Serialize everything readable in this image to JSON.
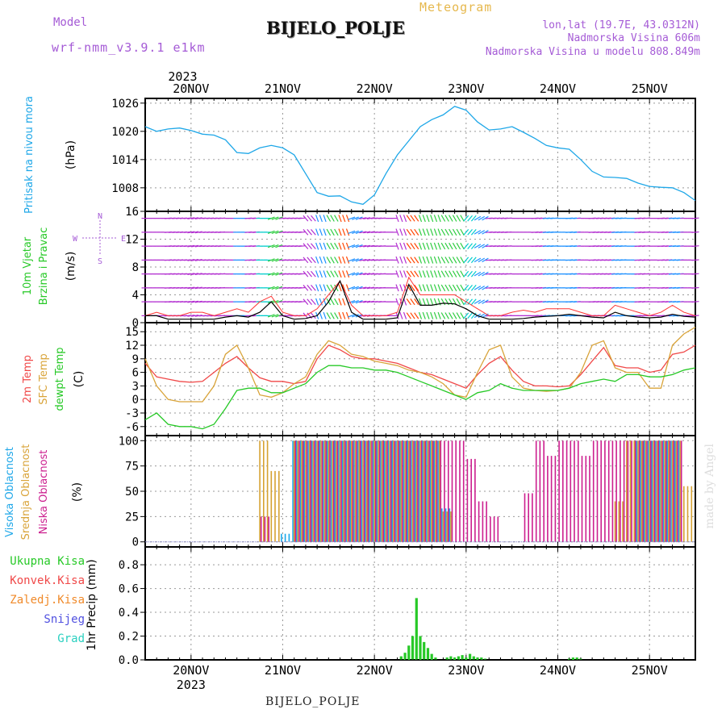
{
  "header": {
    "model_label": "Model",
    "model_name": "wrf-nmm_v3.9.1 e1km",
    "meteogram_label": "Meteogram",
    "station": "BIJELO_POLJE",
    "lonlat": "lon,lat (19.7E, 43.0312N)",
    "altitude": "Nadmorska Visina 606m",
    "model_altitude": "Nadmorska Visina u modelu 808.849m",
    "made_by": "made by Angel",
    "footer_station": "BIJELO_POLJE"
  },
  "time_axis": {
    "year_label": "2023",
    "day_labels": [
      "20NOV",
      "21NOV",
      "22NOV",
      "23NOV",
      "24NOV",
      "25NOV"
    ],
    "start_hour": -12,
    "end_hour": 132
  },
  "colors": {
    "pressure": "#1ea7e8",
    "wind_speed": "#000000",
    "wind_gust": "#ff3333",
    "temp_2m": "#f04848",
    "temp_sfc": "#d9a43a",
    "dewpoint": "#27c927",
    "cloud_high": "#19a8ea",
    "cloud_mid": "#d6a232",
    "cloud_low": "#cc1f8f",
    "precip_total": "#27c927",
    "label_cyan": "#1ea7e8",
    "label_green": "#27c927",
    "label_red": "#f04848",
    "label_orange": "#f08a2a",
    "label_blue": "#5050e0",
    "label_teal": "#2ad0c0",
    "label_purple": "#a55bd6"
  },
  "chart_data": [
    {
      "type": "line",
      "name": "pressure",
      "labels": [
        "Pritisak na nivou mora",
        "(hPa)"
      ],
      "ylim": [
        1003,
        1027
      ],
      "yticks": [
        1008,
        1014,
        1020,
        1026
      ],
      "x": [
        -12,
        -9,
        -6,
        -3,
        0,
        3,
        6,
        9,
        12,
        15,
        18,
        21,
        24,
        27,
        30,
        33,
        36,
        39,
        42,
        45,
        48,
        51,
        54,
        57,
        60,
        63,
        66,
        69,
        72,
        75,
        78,
        81,
        84,
        87,
        90,
        93,
        96,
        99,
        102,
        105,
        108,
        111,
        114,
        117,
        120,
        123,
        126,
        129,
        132
      ],
      "y": [
        1021.0,
        1020.0,
        1020.5,
        1020.7,
        1020.2,
        1019.4,
        1019.2,
        1018.2,
        1015.5,
        1015.3,
        1016.5,
        1017.0,
        1016.5,
        1015.0,
        1011.0,
        1007.0,
        1006.2,
        1006.3,
        1005.0,
        1004.5,
        1006.5,
        1011.0,
        1015.0,
        1018.0,
        1021.0,
        1022.5,
        1023.5,
        1025.3,
        1024.5,
        1022.0,
        1020.3,
        1020.5,
        1021.0,
        1019.8,
        1018.5,
        1017.0,
        1016.5,
        1016.2,
        1014.0,
        1011.5,
        1010.3,
        1010.2,
        1010.0,
        1009.0,
        1008.3,
        1008.1,
        1008.0,
        1007.0,
        1005.3
      ]
    },
    {
      "type": "line",
      "name": "wind",
      "labels": [
        "10m Vjetar",
        "Brzina i Pravac",
        "(m/s)"
      ],
      "direction_legend": {
        "north": "N",
        "south": "S",
        "east": "E",
        "west": "W"
      },
      "ylim": [
        0,
        16
      ],
      "yticks": [
        0,
        4,
        8,
        12,
        16
      ],
      "x": [
        -12,
        -9,
        -6,
        -3,
        0,
        3,
        6,
        9,
        12,
        15,
        18,
        21,
        24,
        27,
        30,
        33,
        36,
        39,
        42,
        45,
        48,
        51,
        54,
        57,
        60,
        63,
        66,
        69,
        72,
        75,
        78,
        81,
        84,
        87,
        90,
        93,
        96,
        99,
        102,
        105,
        108,
        111,
        114,
        117,
        120,
        123,
        126,
        129,
        132
      ],
      "speed": [
        1.0,
        1.0,
        0.5,
        0.5,
        0.5,
        0.5,
        0.5,
        0.8,
        1.0,
        0.8,
        1.5,
        3.0,
        1.0,
        0.5,
        0.6,
        1.0,
        3.0,
        6.0,
        1.5,
        0.5,
        0.5,
        0.5,
        0.7,
        5.5,
        2.5,
        2.5,
        2.8,
        2.7,
        2.0,
        1.0,
        0.5,
        0.5,
        0.5,
        0.6,
        0.8,
        0.9,
        1.0,
        1.2,
        1.0,
        0.8,
        0.7,
        1.5,
        1.0,
        0.8,
        0.7,
        0.8,
        1.2,
        0.9,
        0.8
      ],
      "gust": [
        1.0,
        1.5,
        1.0,
        1.0,
        1.5,
        1.5,
        1.0,
        1.5,
        2.0,
        1.5,
        3.0,
        3.8,
        1.5,
        1.0,
        1.0,
        2.0,
        4.0,
        6.0,
        2.5,
        1.0,
        1.0,
        1.0,
        1.5,
        6.5,
        4.0,
        4.0,
        4.0,
        4.0,
        3.0,
        2.0,
        1.0,
        1.0,
        1.5,
        1.8,
        1.5,
        2.0,
        2.0,
        2.0,
        1.5,
        1.0,
        1.0,
        2.5,
        2.0,
        1.5,
        1.0,
        1.5,
        2.5,
        1.5,
        1.0
      ],
      "direction_deg": [
        90,
        90,
        95,
        95,
        100,
        95,
        95,
        90,
        90,
        95,
        90,
        110,
        95,
        95,
        220,
        200,
        210,
        200,
        110,
        100,
        95,
        90,
        200,
        215,
        200,
        200,
        210,
        210,
        140,
        120,
        95,
        95,
        90,
        90,
        95,
        95,
        90,
        95,
        90,
        95,
        95,
        95,
        90,
        95,
        90,
        95,
        95,
        90,
        95
      ]
    },
    {
      "type": "line",
      "name": "temperature",
      "labels": [
        "2m Temp",
        "SFC Temp",
        "dewpt Temp",
        "(C)"
      ],
      "ylim": [
        -8,
        17
      ],
      "yticks": [
        -6,
        -3,
        0,
        3,
        6,
        9,
        12,
        15
      ],
      "x": [
        -12,
        -9,
        -6,
        -3,
        0,
        3,
        6,
        9,
        12,
        15,
        18,
        21,
        24,
        27,
        30,
        33,
        36,
        39,
        42,
        45,
        48,
        51,
        54,
        57,
        60,
        63,
        66,
        69,
        72,
        75,
        78,
        81,
        84,
        87,
        90,
        93,
        96,
        99,
        102,
        105,
        108,
        111,
        114,
        117,
        120,
        123,
        126,
        129,
        132
      ],
      "series": [
        {
          "name": "2m Temp",
          "values": [
            8.0,
            5.0,
            4.5,
            4.0,
            3.8,
            4.0,
            6.0,
            8.0,
            9.5,
            7.0,
            4.8,
            4.0,
            4.0,
            3.5,
            4.0,
            9.0,
            12.0,
            11.0,
            9.5,
            9.0,
            9.0,
            8.5,
            8.0,
            7.0,
            6.0,
            5.5,
            4.5,
            3.5,
            2.5,
            5.5,
            8.0,
            9.5,
            6.5,
            4.0,
            3.0,
            3.0,
            2.8,
            3.0,
            5.5,
            8.5,
            11.5,
            7.5,
            7.0,
            7.0,
            6.0,
            6.5,
            10.0,
            10.5,
            12.0
          ]
        },
        {
          "name": "SFC Temp",
          "values": [
            9.0,
            3.0,
            0.0,
            -0.5,
            -0.5,
            -0.5,
            3.0,
            10.0,
            12.0,
            7.0,
            1.0,
            0.5,
            1.5,
            3.5,
            5.0,
            10.0,
            13.0,
            12.0,
            10.0,
            9.5,
            8.5,
            8.0,
            7.5,
            6.5,
            6.0,
            5.0,
            3.5,
            1.0,
            0.5,
            6.0,
            11.0,
            12.0,
            5.0,
            2.5,
            2.0,
            1.8,
            2.0,
            2.5,
            6.0,
            12.0,
            13.0,
            7.0,
            6.0,
            6.0,
            2.5,
            2.5,
            12.0,
            14.5,
            16.0
          ]
        },
        {
          "name": "dewpt Temp",
          "values": [
            -4.5,
            -3.0,
            -5.5,
            -6.0,
            -6.0,
            -6.5,
            -5.5,
            -2.0,
            2.0,
            2.5,
            2.5,
            1.5,
            1.5,
            2.5,
            3.5,
            6.0,
            7.5,
            7.5,
            7.0,
            7.0,
            6.5,
            6.5,
            6.0,
            5.0,
            4.0,
            3.0,
            2.0,
            1.0,
            0.0,
            1.5,
            2.0,
            3.5,
            2.5,
            2.0,
            2.0,
            2.0,
            2.0,
            2.5,
            3.5,
            4.0,
            4.5,
            4.0,
            5.5,
            5.5,
            5.0,
            5.0,
            5.5,
            6.5,
            7.0
          ]
        }
      ]
    },
    {
      "type": "bar",
      "name": "cloud_cover",
      "labels": [
        "Visoka Oblacnost",
        "Srednja Oblacnost",
        "Niska Oblacnost",
        "(%)"
      ],
      "ylim": [
        -5,
        105
      ],
      "yticks": [
        0,
        25,
        50,
        75,
        100
      ],
      "x": [
        -12,
        -9,
        -6,
        -3,
        0,
        3,
        6,
        9,
        12,
        15,
        18,
        21,
        24,
        27,
        30,
        33,
        36,
        39,
        42,
        45,
        48,
        51,
        54,
        57,
        60,
        63,
        66,
        69,
        72,
        75,
        78,
        81,
        84,
        87,
        90,
        93,
        96,
        99,
        102,
        105,
        108,
        111,
        114,
        117,
        120,
        123,
        126,
        129,
        132
      ],
      "series": [
        {
          "name": "Visoka Oblacnost",
          "values": [
            0,
            0,
            0,
            0,
            0,
            0,
            0,
            0,
            0,
            0,
            0,
            0,
            8,
            100,
            100,
            100,
            100,
            100,
            100,
            100,
            100,
            100,
            100,
            100,
            100,
            100,
            33,
            0,
            0,
            0,
            0,
            0,
            0,
            0,
            0,
            0,
            0,
            0,
            0,
            0,
            0,
            0,
            0,
            100,
            100,
            100,
            100,
            0,
            5
          ]
        },
        {
          "name": "Srednja Oblacnost",
          "values": [
            0,
            0,
            0,
            0,
            0,
            0,
            0,
            0,
            0,
            0,
            100,
            70,
            0,
            100,
            100,
            100,
            100,
            100,
            100,
            100,
            100,
            100,
            100,
            100,
            100,
            100,
            30,
            0,
            0,
            0,
            0,
            0,
            0,
            0,
            0,
            0,
            0,
            0,
            0,
            0,
            0,
            40,
            100,
            100,
            100,
            100,
            100,
            55,
            0
          ]
        },
        {
          "name": "Niska Oblacnost",
          "values": [
            0,
            0,
            0,
            0,
            0,
            0,
            0,
            0,
            0,
            0,
            25,
            0,
            0,
            100,
            100,
            100,
            100,
            100,
            100,
            100,
            100,
            100,
            100,
            100,
            100,
            100,
            100,
            100,
            82,
            40,
            25,
            0,
            0,
            48,
            100,
            85,
            100,
            100,
            85,
            100,
            100,
            100,
            100,
            100,
            100,
            100,
            100,
            0,
            0
          ]
        }
      ]
    },
    {
      "type": "bar",
      "name": "precipitation",
      "labels": [
        "Ukupna Kisa",
        "Konvek.Kisa",
        "Zaledj.Kisa",
        "Snijeg",
        "Grad",
        "1hr Precip (mm)"
      ],
      "ylim": [
        0,
        0.95
      ],
      "yticks": [
        0,
        0.2,
        0.4,
        0.6,
        0.8
      ],
      "x": [
        55,
        56,
        57,
        58,
        59,
        60,
        61,
        62,
        63,
        64,
        65,
        66,
        67,
        68,
        69,
        70,
        71,
        72,
        73,
        74,
        75,
        76,
        77,
        78,
        79,
        80,
        81,
        82,
        99,
        100,
        101,
        102
      ],
      "values": [
        0.03,
        0.06,
        0.12,
        0.2,
        0.52,
        0.2,
        0.15,
        0.1,
        0.05,
        0.02,
        0.0,
        0.0,
        0.02,
        0.03,
        0.02,
        0.03,
        0.04,
        0.02,
        0.05,
        0.03,
        0.02,
        0.02,
        0.01,
        0.0,
        0.0,
        0.0,
        0.0,
        0.0,
        0.01,
        0.02,
        0.02,
        0.01
      ]
    }
  ]
}
